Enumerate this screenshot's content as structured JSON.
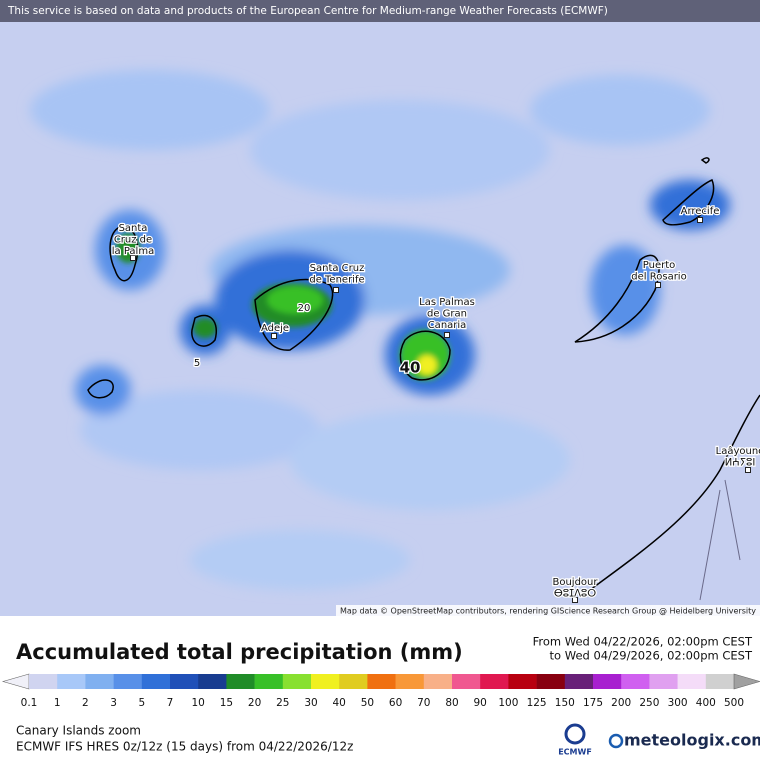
{
  "header": {
    "notice": "This service is based on data and products of the European Centre for Medium-range Weather Forecasts (ECMWF)"
  },
  "map": {
    "places": [
      {
        "lines": [
          "Santa",
          "Cruz de",
          "la Palma"
        ]
      },
      {
        "lines": [
          "Santa Cruz",
          "de Tenerife"
        ]
      },
      {
        "lines": [
          "Adeje"
        ]
      },
      {
        "lines": [
          "Las Palmas",
          "de Gran",
          "Canaria"
        ]
      },
      {
        "lines": [
          "Puerto",
          "del Rosario"
        ]
      },
      {
        "lines": [
          "Arrecife"
        ]
      },
      {
        "lines": [
          "Laâyoune",
          "ⵍⵄⵢⵓⵏ"
        ]
      },
      {
        "lines": [
          "Boujdour",
          "ⴱⵓⵊⴷⵓⵔ"
        ]
      }
    ],
    "contour_labels": [
      "20",
      "5",
      "40"
    ],
    "attribution": "Map data © OpenStreetMap contributors, rendering GIScience Research Group @ Heidelberg University"
  },
  "legend": {
    "title": "Accumulated total precipitation (mm)",
    "from": "From Wed 04/22/2026, 02:00pm CEST",
    "to": "to Wed 04/29/2026, 02:00pm CEST",
    "levels": [
      0.1,
      1,
      2,
      3,
      5,
      7,
      10,
      15,
      20,
      25,
      30,
      40,
      50,
      60,
      70,
      80,
      90,
      100,
      125,
      150,
      175,
      200,
      250,
      300,
      400,
      500
    ],
    "below_color": "#f0f0f8",
    "above_color": "#a0a0a0",
    "colors": [
      "#d0d4f0",
      "#a8c8f8",
      "#80b0f0",
      "#5890e8",
      "#3070d8",
      "#2050b8",
      "#183c90",
      "#208c28",
      "#38c028",
      "#88e030",
      "#f0f020",
      "#e0cc20",
      "#f07010",
      "#f89838",
      "#f8b088",
      "#f05890",
      "#e01850",
      "#b80010",
      "#880010",
      "#682078",
      "#a820d0",
      "#d060f0",
      "#e0a0f0",
      "#f4dcf8",
      "#d0d0d0"
    ]
  },
  "footer": {
    "region": "Canary Islands zoom",
    "model": "ECMWF IFS HRES 0z/12z (15 days) from 04/22/2026/12z",
    "ecmwf_logo": "ECMWF",
    "brand": "meteologix.com"
  }
}
